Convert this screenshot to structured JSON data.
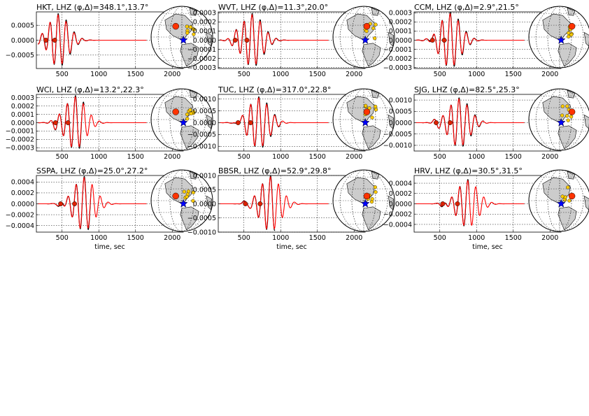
{
  "figure": {
    "xlabel": "time, sec"
  },
  "colors": {
    "observed": "#000000",
    "synthetic": "#ff0000",
    "station_marker": "#ff3300",
    "other_station": "#ffcc00",
    "epicenter": "#0000ff",
    "land": "#cccccc",
    "ocean": "#ffffff"
  },
  "chart_data": [
    {
      "type": "line",
      "title_station": "HKT",
      "title_channel": "LHZ",
      "title_params": "(φ,Δ)=348.1°,13.7°",
      "xlim": [
        150,
        2150
      ],
      "ylim": [
        -0.00095,
        0.00095
      ],
      "xticks": [
        500,
        1000,
        1500,
        2000
      ],
      "yticks": [
        -0.0005,
        0.0,
        0.0005
      ],
      "ytick_labels": [
        "−0.0005",
        "0.0000",
        "0.0005"
      ],
      "arrival_picks": [
        280,
        400
      ],
      "window": [
        380,
        1100
      ],
      "peak_time": 445,
      "amplitude": 0.00085,
      "observed_end": 1100
    },
    {
      "type": "line",
      "title_station": "WVT",
      "title_channel": "LHZ",
      "title_params": "(φ,Δ)=11.3°,20.0°",
      "xlim": [
        150,
        2150
      ],
      "ylim": [
        -0.00031,
        0.00031
      ],
      "xticks": [
        500,
        1000,
        1500,
        2000
      ],
      "yticks": [
        -0.0003,
        -0.0002,
        -0.0001,
        0.0,
        0.0001,
        0.0002,
        0.0003
      ],
      "ytick_labels": [
        "−0.0003",
        "−0.0002",
        "−0.0001",
        "0.0000",
        "0.0001",
        "0.0002",
        "0.0003"
      ],
      "arrival_picks": [
        380,
        540
      ],
      "window": [
        520,
        1200
      ],
      "peak_time": 610,
      "amplitude": 0.00028,
      "observed_end": 1150
    },
    {
      "type": "line",
      "title_station": "CCM",
      "title_channel": "LHZ",
      "title_params": "(φ,Δ)=2.9°,21.5°",
      "xlim": [
        150,
        2150
      ],
      "ylim": [
        -0.00031,
        0.00031
      ],
      "xticks": [
        500,
        1000,
        1500,
        2000
      ],
      "yticks": [
        -0.0003,
        -0.0002,
        -0.0001,
        0.0,
        0.0001,
        0.0002,
        0.0003
      ],
      "ytick_labels": [
        "−0.0003",
        "−0.0002",
        "−0.0001",
        "0.0000",
        "0.0001",
        "0.0002",
        "0.0003"
      ],
      "arrival_picks": [
        400,
        560
      ],
      "window": [
        540,
        1200
      ],
      "peak_time": 640,
      "amplitude": 0.00029,
      "observed_end": 1100
    },
    {
      "type": "line",
      "title_station": "WCI",
      "title_channel": "LHZ",
      "title_params": "(φ,Δ)=13.2°,22.3°",
      "xlim": [
        150,
        2150
      ],
      "ylim": [
        -0.00034,
        0.00034
      ],
      "xticks": [
        500,
        1000,
        1500,
        2000
      ],
      "yticks": [
        -0.0003,
        -0.0002,
        -0.0001,
        0.0,
        0.0001,
        0.0002,
        0.0003
      ],
      "ytick_labels": [
        "−0.0003",
        "−0.0002",
        "−0.0001",
        "0.0000",
        "0.0001",
        "0.0002",
        "0.0003"
      ],
      "arrival_picks": [
        410,
        580
      ],
      "window": [
        560,
        1200
      ],
      "peak_time": 680,
      "amplitude": 0.00031,
      "observed_end": 800
    },
    {
      "type": "line",
      "title_station": "TUC",
      "title_channel": "LHZ",
      "title_params": "(φ,Δ)=317.0°,22.8°",
      "xlim": [
        150,
        2150
      ],
      "ylim": [
        -0.0012,
        0.0012
      ],
      "xticks": [
        500,
        1000,
        1500,
        2000
      ],
      "yticks": [
        -0.001,
        -0.0005,
        0.0,
        0.0005,
        0.001
      ],
      "ytick_labels": [
        "−0.0010",
        "−0.0005",
        "0.0000",
        "0.0005",
        "0.0010"
      ],
      "arrival_picks": [
        420,
        590
      ],
      "window": [
        570,
        1250
      ],
      "peak_time": 700,
      "amplitude": 0.00105,
      "observed_end": 1000
    },
    {
      "type": "line",
      "title_station": "SJG",
      "title_channel": "LHZ",
      "title_params": "(φ,Δ)=82.5°,25.3°",
      "xlim": [
        150,
        2150
      ],
      "ylim": [
        -0.00125,
        0.00125
      ],
      "xticks": [
        500,
        1000,
        1500,
        2000
      ],
      "yticks": [
        -0.001,
        -0.0005,
        0.0,
        0.0005,
        0.001
      ],
      "ytick_labels": [
        "−0.0010",
        "−0.0005",
        "0.0000",
        "0.0005",
        "0.0010"
      ],
      "arrival_picks": [
        450,
        640
      ],
      "window": [
        620,
        1300
      ],
      "peak_time": 760,
      "amplitude": 0.00105,
      "observed_end": 1100
    },
    {
      "type": "line",
      "title_station": "SSPA",
      "title_channel": "LHZ",
      "title_params": "(φ,Δ)=25.0°,27.2°",
      "xlim": [
        150,
        2150
      ],
      "ylim": [
        -0.00052,
        0.00052
      ],
      "xticks": [
        500,
        1000,
        1500,
        2000
      ],
      "yticks": [
        -0.0004,
        -0.0002,
        0.0,
        0.0002,
        0.0004
      ],
      "ytick_labels": [
        "−0.0004",
        "−0.0002",
        "0.0000",
        "0.0002",
        "0.0004"
      ],
      "arrival_picks": [
        480,
        670
      ],
      "window": [
        650,
        1350
      ],
      "peak_time": 800,
      "amplitude": 0.00048,
      "observed_end": 900
    },
    {
      "type": "line",
      "title_station": "BBSR",
      "title_channel": "LHZ",
      "title_params": "(φ,Δ)=52.9°,29.8°",
      "xlim": [
        150,
        2150
      ],
      "ylim": [
        -0.001,
        0.001
      ],
      "xticks": [
        500,
        1000,
        1500,
        2000
      ],
      "yticks": [
        -0.001,
        -0.0005,
        0.0,
        0.0005,
        0.001
      ],
      "ytick_labels": [
        "−0.0010",
        "−0.0005",
        "0.0000",
        "0.0005",
        "0.0010"
      ],
      "arrival_picks": [
        520,
        720
      ],
      "window": [
        700,
        1400
      ],
      "peak_time": 860,
      "amplitude": 0.00095,
      "observed_end": 920
    },
    {
      "type": "line",
      "title_station": "HRV",
      "title_channel": "LHZ",
      "title_params": "(φ,Δ)=30.5°,31.5°",
      "xlim": [
        150,
        2150
      ],
      "ylim": [
        -0.00055,
        0.00055
      ],
      "xticks": [
        500,
        1000,
        1500,
        2000
      ],
      "yticks": [
        -0.0004,
        -0.0002,
        0.0,
        0.0002,
        0.0004
      ],
      "ytick_labels": [
        "−0.0004",
        "−0.0002",
        "0.0000",
        "0.0002",
        "0.0004"
      ],
      "arrival_picks": [
        540,
        740
      ],
      "window": [
        720,
        1400
      ],
      "peak_time": 880,
      "amplitude": 0.00045,
      "observed_end": 900
    }
  ]
}
